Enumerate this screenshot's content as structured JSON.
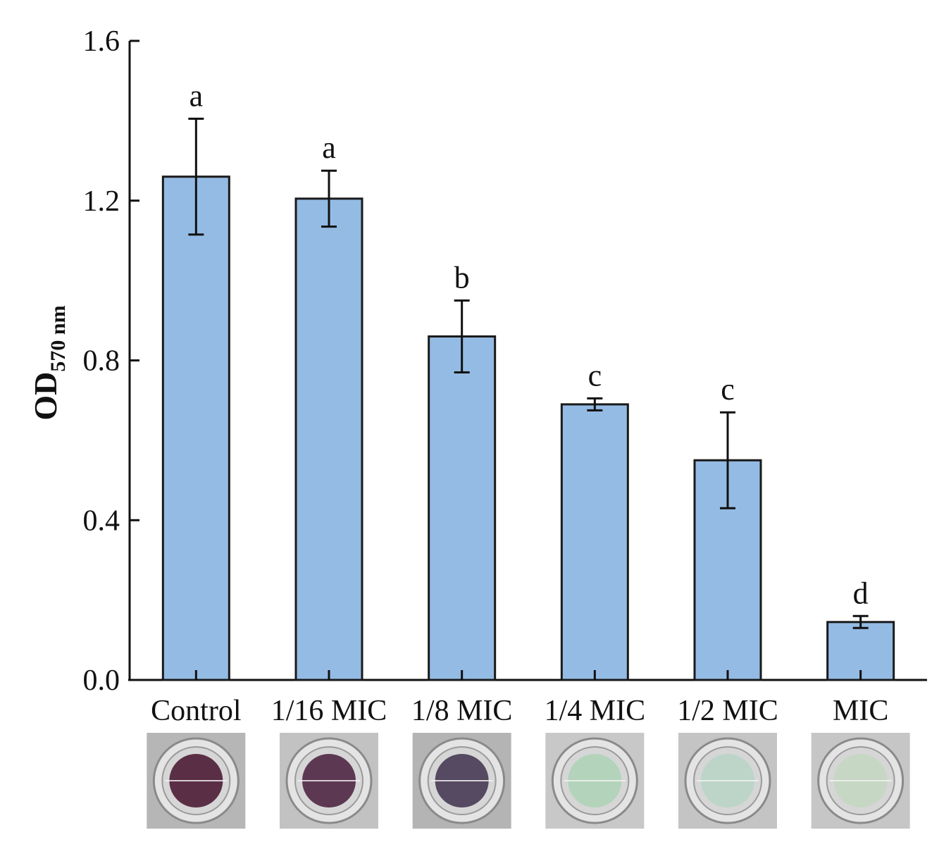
{
  "chart_data": {
    "type": "bar",
    "categories": [
      "Control",
      "1/16 MIC",
      "1/8 MIC",
      "1/4 MIC",
      "1/2 MIC",
      "MIC"
    ],
    "values": [
      1.26,
      1.205,
      0.86,
      0.69,
      0.55,
      0.145
    ],
    "errors": [
      0.145,
      0.07,
      0.09,
      0.015,
      0.12,
      0.015
    ],
    "significance_letters": [
      "a",
      "a",
      "b",
      "c",
      "c",
      "d"
    ],
    "ylabel": "OD",
    "ylabel_subscript": "570 nm",
    "ylim": [
      0,
      1.6
    ],
    "yticks": [
      "0.0",
      "0.4",
      "0.8",
      "1.2",
      "1.6"
    ],
    "bar_color": "#94bbe3",
    "bar_edge_color": "#1a1a1a",
    "grid": false,
    "legend": "none"
  },
  "well_images": [
    {
      "label": "Control",
      "well_color": "#5a2f45",
      "bg_color": "#b6b6b6"
    },
    {
      "label": "1/16 MIC",
      "well_color": "#5d3852",
      "bg_color": "#c2c2c2"
    },
    {
      "label": "1/8 MIC",
      "well_color": "#554a62",
      "bg_color": "#b4b4b4"
    },
    {
      "label": "1/4 MIC",
      "well_color": "#b3d3ba",
      "bg_color": "#c8c8c8"
    },
    {
      "label": "1/2 MIC",
      "well_color": "#bcd5c8",
      "bg_color": "#c4c4c4"
    },
    {
      "label": "MIC",
      "well_color": "#c6d8c4",
      "bg_color": "#c6c6c6"
    }
  ]
}
